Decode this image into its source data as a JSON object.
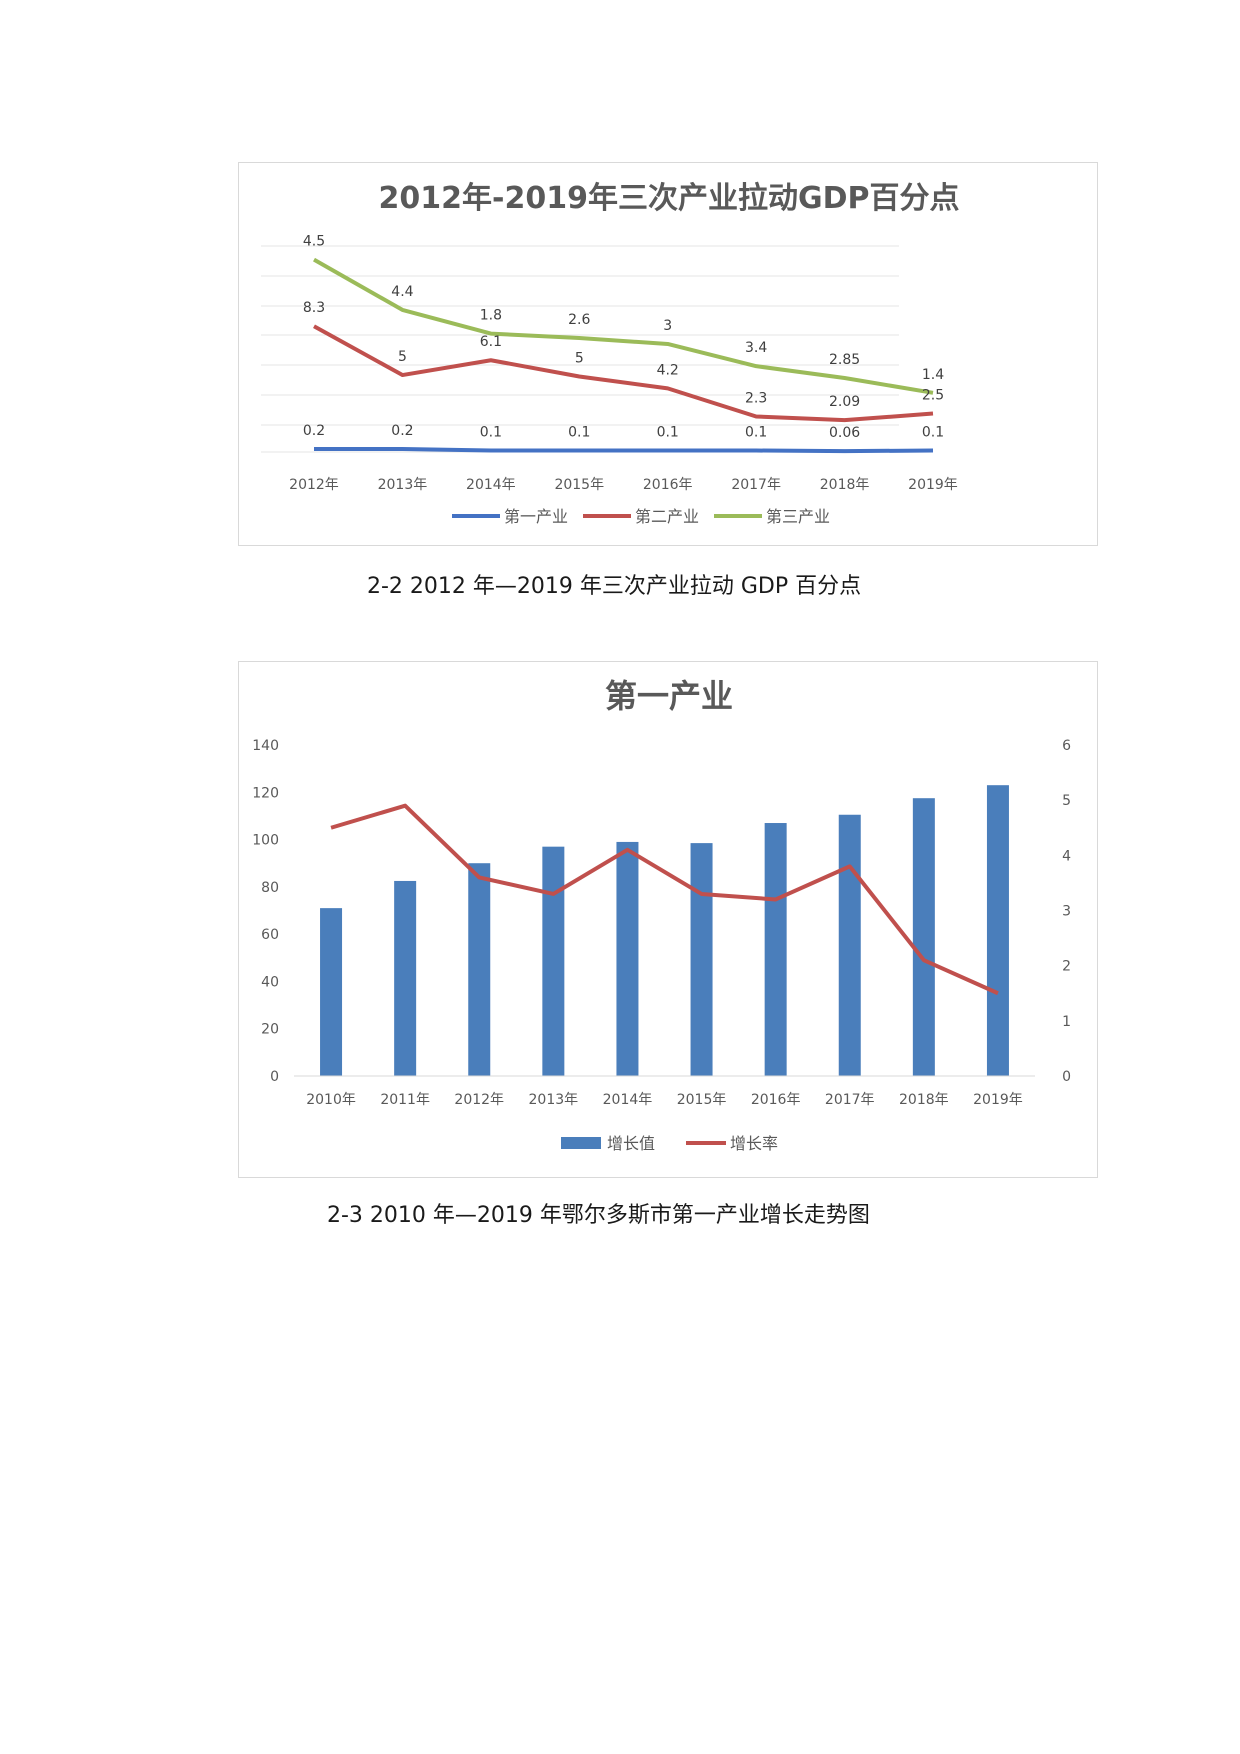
{
  "captions": {
    "fig1": "2-2 2012 年—2019 年三次产业拉动 GDP 百分点",
    "fig2": "2-3 2010 年—2019 年鄂尔多斯市第一产业增长走势图"
  },
  "chart_data": [
    {
      "type": "line",
      "title": "2012年-2019年三次产业拉动GDP百分点",
      "categories": [
        "2012年",
        "2013年",
        "2014年",
        "2015年",
        "2016年",
        "2017年",
        "2018年",
        "2019年"
      ],
      "series": [
        {
          "name": "第一产业",
          "color": "#4472c4",
          "values": [
            0.2,
            0.2,
            0.1,
            0.1,
            0.1,
            0.1,
            0.06,
            0.1
          ],
          "labels": [
            "0.2",
            "0.2",
            "0.1",
            "0.1",
            "0.1",
            "0.1",
            "0.06",
            "0.1"
          ]
        },
        {
          "name": "第二产业",
          "color": "#c0504d",
          "values": [
            8.3,
            5,
            6.1,
            5,
            4.2,
            2.3,
            2.09,
            2.5
          ],
          "labels": [
            "8.3",
            "5",
            "6.1",
            "5",
            "4.2",
            "2.3",
            "2.09",
            "2.5"
          ]
        },
        {
          "name": "第三产业",
          "color": "#9bbb59",
          "values": [
            4.5,
            4.4,
            1.8,
            2.6,
            3,
            3.4,
            2.85,
            1.4
          ],
          "labels": [
            "4.5",
            "4.4",
            "1.8",
            "2.6",
            "3",
            "3.4",
            "2.85",
            "1.4"
          ]
        }
      ],
      "stacked": true,
      "grid": true,
      "legend": "bottom"
    },
    {
      "type": "bar",
      "title": "第一产业",
      "categories": [
        "2010年",
        "2011年",
        "2012年",
        "2013年",
        "2014年",
        "2015年",
        "2016年",
        "2017年",
        "2018年",
        "2019年"
      ],
      "series": [
        {
          "name": "增长值",
          "type": "bar",
          "axis": "left",
          "color": "#4a7ebb",
          "values": [
            71,
            82.5,
            90,
            97,
            99,
            98.5,
            107,
            110.5,
            117.5,
            123
          ]
        },
        {
          "name": "增长率",
          "type": "line",
          "axis": "right",
          "color": "#c0504d",
          "values": [
            4.5,
            4.9,
            3.6,
            3.3,
            4.1,
            3.3,
            3.2,
            3.8,
            2.1,
            1.5
          ]
        }
      ],
      "yleft": {
        "min": 0,
        "max": 140,
        "ticks": [
          "0",
          "20",
          "40",
          "60",
          "80",
          "100",
          "120",
          "140"
        ]
      },
      "yright": {
        "min": 0,
        "max": 6,
        "ticks": [
          "0",
          "1",
          "2",
          "3",
          "4",
          "5",
          "6"
        ]
      },
      "grid": false,
      "legend": "bottom"
    }
  ]
}
